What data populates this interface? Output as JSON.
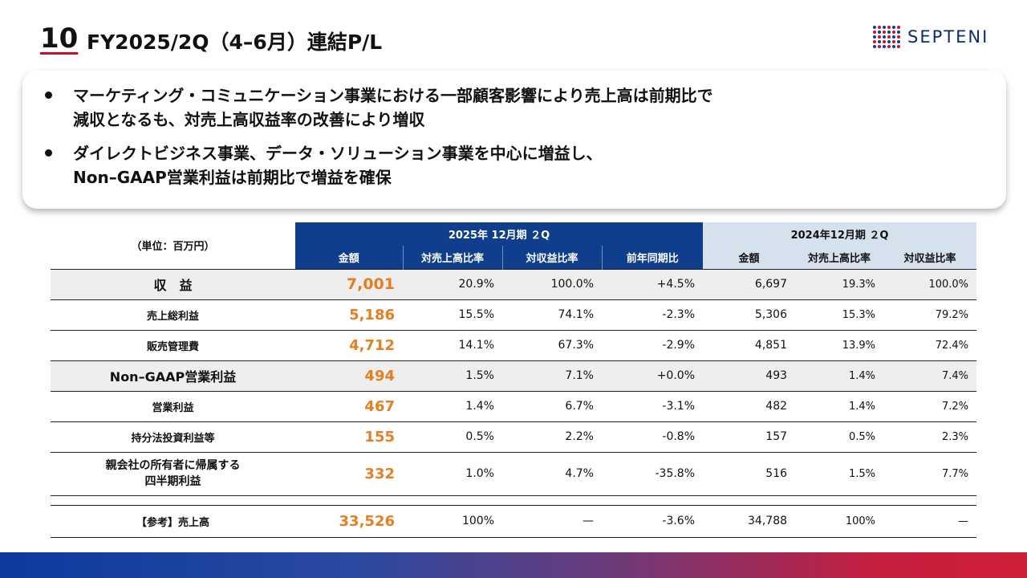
{
  "header": {
    "slide_number": "10",
    "title": "FY2025/2Q（4–6月）連結P/L",
    "logo_text": "SEPTENI"
  },
  "bullets": [
    {
      "line1": "マーケティング・コミュニケーション事業における一部顧客影響により売上高は前期比で",
      "line2": "減収となるも、対売上高収益率の改善により増収"
    },
    {
      "line1": "ダイレクトビジネス事業、データ・ソリューション事業を中心に増益し、",
      "line2": "Non–GAAP営業利益は前期比で増益を確保"
    }
  ],
  "table": {
    "unit_label": "（単位：百万円）",
    "group_current": "2025年 12月期 ２Q",
    "group_prior": "2024年12月期 ２Q",
    "columns": [
      "金額",
      "対売上高比率",
      "対収益比率",
      "前年同期比",
      "金額",
      "対売上高比率",
      "対収益比率"
    ],
    "rows": [
      {
        "label": "収　益",
        "amount": "7,001",
        "sales_ratio": "20.9%",
        "rev_ratio": "100.0%",
        "yoy": "+4.5%",
        "prev_amount": "6,697",
        "prev_sales_ratio": "19.3%",
        "prev_rev_ratio": "100.0%"
      },
      {
        "label": "売上総利益",
        "amount": "5,186",
        "sales_ratio": "15.5%",
        "rev_ratio": "74.1%",
        "yoy": "-2.3%",
        "prev_amount": "5,306",
        "prev_sales_ratio": "15.3%",
        "prev_rev_ratio": "79.2%"
      },
      {
        "label": "販売管理費",
        "amount": "4,712",
        "sales_ratio": "14.1%",
        "rev_ratio": "67.3%",
        "yoy": "-2.9%",
        "prev_amount": "4,851",
        "prev_sales_ratio": "13.9%",
        "prev_rev_ratio": "72.4%"
      },
      {
        "label": "Non–GAAP営業利益",
        "amount": "494",
        "sales_ratio": "1.5%",
        "rev_ratio": "7.1%",
        "yoy": "+0.0%",
        "prev_amount": "493",
        "prev_sales_ratio": "1.4%",
        "prev_rev_ratio": "7.4%"
      },
      {
        "label": "営業利益",
        "amount": "467",
        "sales_ratio": "1.4%",
        "rev_ratio": "6.7%",
        "yoy": "-3.1%",
        "prev_amount": "482",
        "prev_sales_ratio": "1.4%",
        "prev_rev_ratio": "7.2%"
      },
      {
        "label": "持分法投資利益等",
        "amount": "155",
        "sales_ratio": "0.5%",
        "rev_ratio": "2.2%",
        "yoy": "-0.8%",
        "prev_amount": "157",
        "prev_sales_ratio": "0.5%",
        "prev_rev_ratio": "2.3%"
      },
      {
        "label_line1": "親会社の所有者に帰属する",
        "label_line2": "四半期利益",
        "amount": "332",
        "sales_ratio": "1.0%",
        "rev_ratio": "4.7%",
        "yoy": "-35.8%",
        "prev_amount": "516",
        "prev_sales_ratio": "1.5%",
        "prev_rev_ratio": "7.7%"
      }
    ],
    "reference": {
      "label": "【参考】売上高",
      "amount": "33,526",
      "sales_ratio": "100%",
      "rev_ratio": "—",
      "yoy": "-3.6%",
      "prev_amount": "34,788",
      "prev_sales_ratio": "100%",
      "prev_rev_ratio": "—"
    }
  },
  "colors": {
    "header_blue": "#0f3f8c",
    "header_light": "#d6e1ee",
    "amount_orange": "#e67e22",
    "accent_red": "#c8102e"
  }
}
